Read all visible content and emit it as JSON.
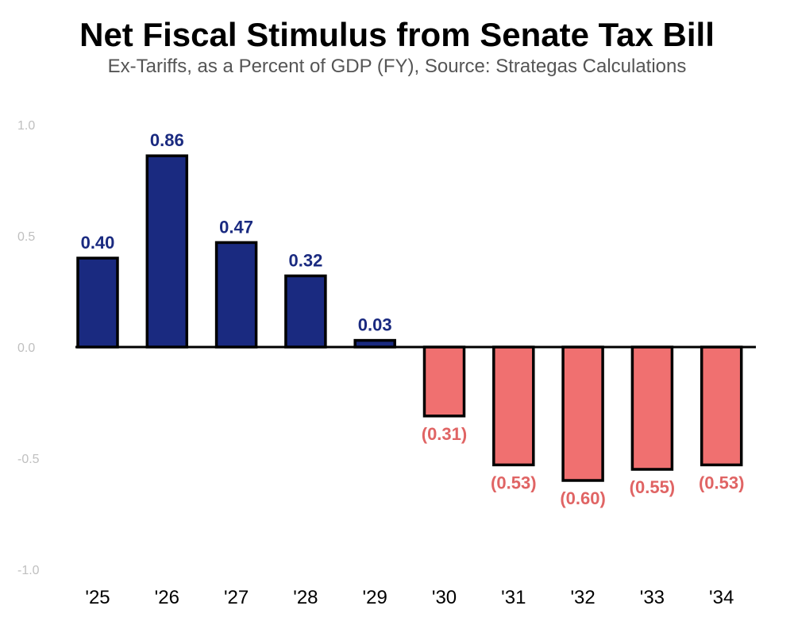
{
  "chart_data": {
    "type": "bar",
    "title": "Net Fiscal Stimulus from Senate Tax Bill",
    "subtitle": "Ex-Tariffs, as a Percent of GDP (FY), Source: Strategas Calculations",
    "categories": [
      "'25",
      "'26",
      "'27",
      "'28",
      "'29",
      "'30",
      "'31",
      "'32",
      "'33",
      "'34"
    ],
    "values": [
      0.4,
      0.86,
      0.47,
      0.32,
      0.03,
      -0.31,
      -0.53,
      -0.6,
      -0.55,
      -0.53
    ],
    "value_labels": [
      "0.40",
      "0.86",
      "0.47",
      "0.32",
      "0.03",
      "(0.31)",
      "(0.53)",
      "(0.60)",
      "(0.55)",
      "(0.53)"
    ],
    "yticks": [
      1.0,
      0.5,
      0.0,
      -0.5,
      -1.0
    ],
    "ytick_labels": [
      "1.0",
      "0.5",
      "0.0",
      "-0.5",
      "-1.0"
    ],
    "ylim": [
      -1.0,
      1.0
    ],
    "xlabel": "",
    "ylabel": "",
    "colors": {
      "positive": "#1a2a80",
      "negative": "#f07070",
      "positive_label": "#1a2a80",
      "negative_label": "#e06464",
      "tick": "#bfbfbf"
    }
  }
}
